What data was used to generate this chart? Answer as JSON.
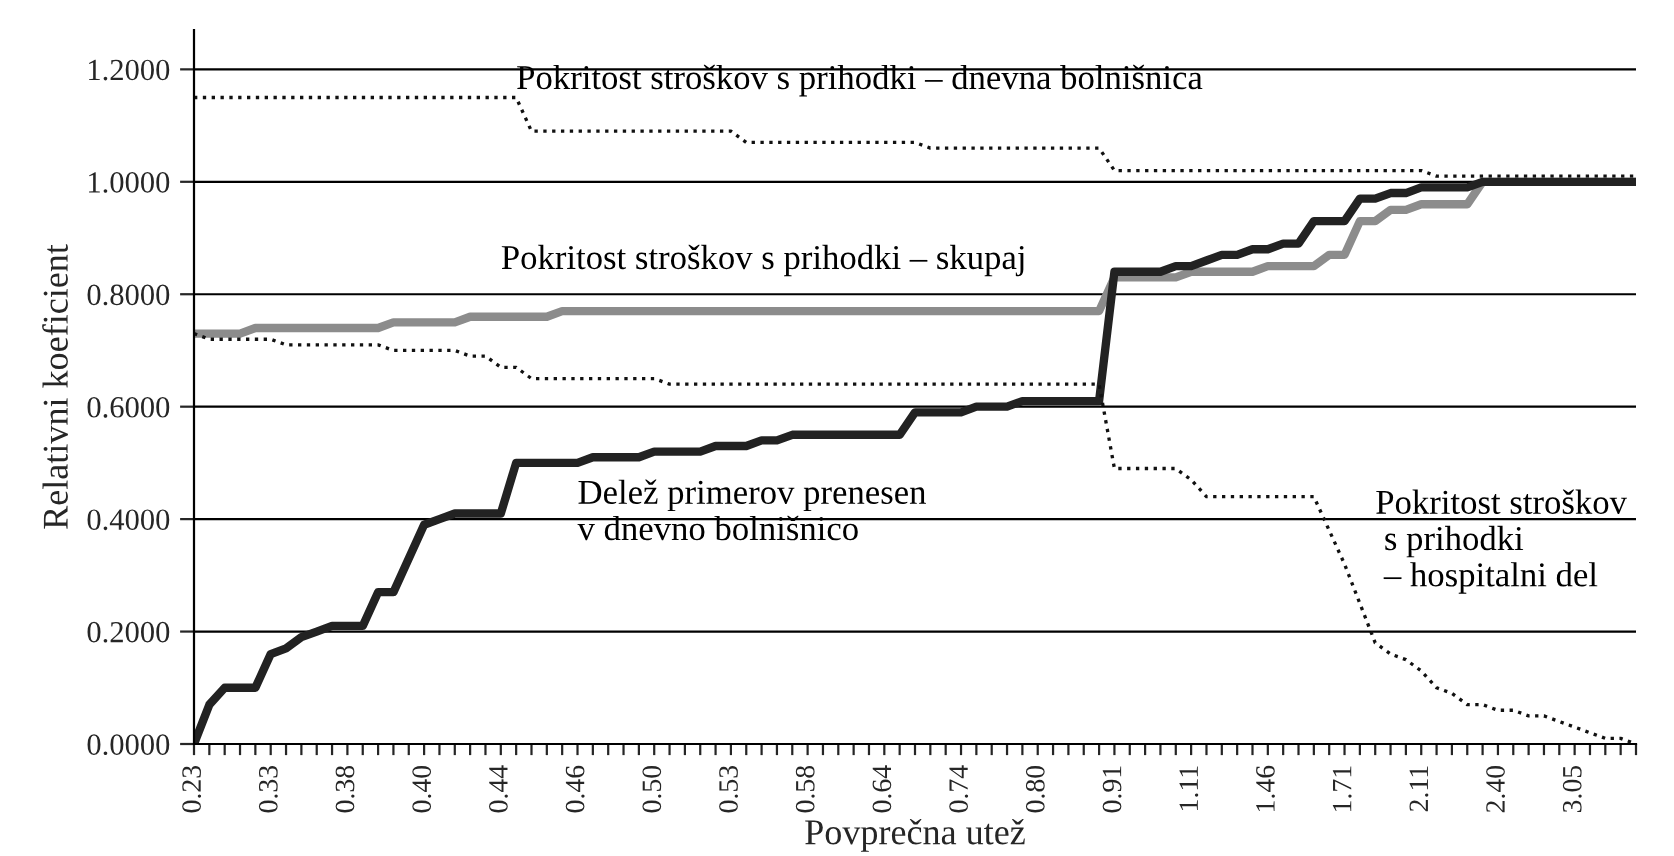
{
  "chart_data": {
    "type": "line",
    "xlabel": "Povprečna utež",
    "ylabel": "Relativni koeficient",
    "categories": [
      "0.23",
      null,
      null,
      null,
      null,
      "0.33",
      null,
      null,
      null,
      null,
      "0.38",
      null,
      null,
      null,
      null,
      "0.40",
      null,
      null,
      null,
      null,
      "0.44",
      null,
      null,
      null,
      null,
      "0.46",
      null,
      null,
      null,
      null,
      "0.50",
      null,
      null,
      null,
      null,
      "0.53",
      null,
      null,
      null,
      null,
      "0.58",
      null,
      null,
      null,
      null,
      "0.64",
      null,
      null,
      null,
      null,
      "0.74",
      null,
      null,
      null,
      null,
      "0.80",
      null,
      null,
      null,
      null,
      "0.91",
      null,
      null,
      null,
      null,
      "1.11",
      null,
      null,
      null,
      null,
      "1.46",
      null,
      null,
      null,
      null,
      "1.71",
      null,
      null,
      null,
      null,
      "2.11",
      null,
      null,
      null,
      null,
      "2.40",
      null,
      null,
      null,
      null,
      "3.05",
      null,
      null,
      null,
      null
    ],
    "series": [
      {
        "name": "Pokritost stroškov s prihodki – dnevna bolnišnica",
        "color": "#111111",
        "line_style": "dotted",
        "values": [
          1.15,
          1.15,
          1.15,
          1.15,
          1.15,
          1.15,
          1.15,
          1.15,
          1.15,
          1.15,
          1.15,
          1.15,
          1.15,
          1.15,
          1.15,
          1.15,
          1.15,
          1.15,
          1.15,
          1.15,
          1.15,
          1.15,
          1.09,
          1.09,
          1.09,
          1.09,
          1.09,
          1.09,
          1.09,
          1.09,
          1.09,
          1.09,
          1.09,
          1.09,
          1.09,
          1.09,
          1.07,
          1.07,
          1.07,
          1.07,
          1.07,
          1.07,
          1.07,
          1.07,
          1.07,
          1.07,
          1.07,
          1.07,
          1.06,
          1.06,
          1.06,
          1.06,
          1.06,
          1.06,
          1.06,
          1.06,
          1.06,
          1.06,
          1.06,
          1.06,
          1.02,
          1.02,
          1.02,
          1.02,
          1.02,
          1.02,
          1.02,
          1.02,
          1.02,
          1.02,
          1.02,
          1.02,
          1.02,
          1.02,
          1.02,
          1.02,
          1.02,
          1.02,
          1.02,
          1.02,
          1.02,
          1.01,
          1.01,
          1.01,
          1.01,
          1.01,
          1.01,
          1.01,
          1.01,
          1.01,
          1.01,
          1.01,
          1.01,
          1.01,
          1.01
        ]
      },
      {
        "name": "Pokritost stroškov s prihodki – skupaj",
        "color": "#8c8c8c",
        "line_style": "solid",
        "values": [
          0.73,
          0.73,
          0.73,
          0.73,
          0.74,
          0.74,
          0.74,
          0.74,
          0.74,
          0.74,
          0.74,
          0.74,
          0.74,
          0.75,
          0.75,
          0.75,
          0.75,
          0.75,
          0.76,
          0.76,
          0.76,
          0.76,
          0.76,
          0.76,
          0.77,
          0.77,
          0.77,
          0.77,
          0.77,
          0.77,
          0.77,
          0.77,
          0.77,
          0.77,
          0.77,
          0.77,
          0.77,
          0.77,
          0.77,
          0.77,
          0.77,
          0.77,
          0.77,
          0.77,
          0.77,
          0.77,
          0.77,
          0.77,
          0.77,
          0.77,
          0.77,
          0.77,
          0.77,
          0.77,
          0.77,
          0.77,
          0.77,
          0.77,
          0.77,
          0.77,
          0.83,
          0.83,
          0.83,
          0.83,
          0.83,
          0.84,
          0.84,
          0.84,
          0.84,
          0.84,
          0.85,
          0.85,
          0.85,
          0.85,
          0.87,
          0.87,
          0.93,
          0.93,
          0.95,
          0.95,
          0.96,
          0.96,
          0.96,
          0.96,
          1.0,
          1.0,
          1.0,
          1.0,
          1.0,
          1.0,
          1.0,
          1.0,
          1.0,
          1.0,
          1.0
        ]
      },
      {
        "name": "Delež primerov prenesen\nv dnevno bolnišnico",
        "color": "#222222",
        "line_style": "solid",
        "values": [
          0,
          0.07,
          0.1,
          0.1,
          0.1,
          0.16,
          0.17,
          0.19,
          0.2,
          0.21,
          0.21,
          0.21,
          0.27,
          0.27,
          0.33,
          0.39,
          0.4,
          0.41,
          0.41,
          0.41,
          0.41,
          0.5,
          0.5,
          0.5,
          0.5,
          0.5,
          0.51,
          0.51,
          0.51,
          0.51,
          0.52,
          0.52,
          0.52,
          0.52,
          0.53,
          0.53,
          0.53,
          0.54,
          0.54,
          0.55,
          0.55,
          0.55,
          0.55,
          0.55,
          0.55,
          0.55,
          0.55,
          0.59,
          0.59,
          0.59,
          0.59,
          0.6,
          0.6,
          0.6,
          0.61,
          0.61,
          0.61,
          0.61,
          0.61,
          0.61,
          0.84,
          0.84,
          0.84,
          0.84,
          0.85,
          0.85,
          0.86,
          0.87,
          0.87,
          0.88,
          0.88,
          0.89,
          0.89,
          0.93,
          0.93,
          0.93,
          0.97,
          0.97,
          0.98,
          0.98,
          0.99,
          0.99,
          0.99,
          0.99,
          1.0,
          1.0,
          1.0,
          1.0,
          1.0,
          1.0,
          1.0,
          1.0,
          1.0,
          1.0,
          1.0
        ]
      },
      {
        "name": "Pokritost stroškov\n s prihodki\n – hospitalni del",
        "color": "#111111",
        "line_style": "dotted",
        "values": [
          0.73,
          0.72,
          0.72,
          0.72,
          0.72,
          0.72,
          0.71,
          0.71,
          0.71,
          0.71,
          0.71,
          0.71,
          0.71,
          0.7,
          0.7,
          0.7,
          0.7,
          0.7,
          0.69,
          0.69,
          0.67,
          0.67,
          0.65,
          0.65,
          0.65,
          0.65,
          0.65,
          0.65,
          0.65,
          0.65,
          0.65,
          0.64,
          0.64,
          0.64,
          0.64,
          0.64,
          0.64,
          0.64,
          0.64,
          0.64,
          0.64,
          0.64,
          0.64,
          0.64,
          0.64,
          0.64,
          0.64,
          0.64,
          0.64,
          0.64,
          0.64,
          0.64,
          0.64,
          0.64,
          0.64,
          0.64,
          0.64,
          0.64,
          0.64,
          0.64,
          0.49,
          0.49,
          0.49,
          0.49,
          0.49,
          0.47,
          0.44,
          0.44,
          0.44,
          0.44,
          0.44,
          0.44,
          0.44,
          0.44,
          0.38,
          0.32,
          0.25,
          0.18,
          0.16,
          0.15,
          0.13,
          0.1,
          0.09,
          0.07,
          0.07,
          0.06,
          0.06,
          0.05,
          0.05,
          0.04,
          0.03,
          0.02,
          0.01,
          0.01,
          0
        ]
      }
    ],
    "ylim": [
      0,
      1.27
    ],
    "yticks": [
      {
        "value": 0,
        "label": "0.0000"
      },
      {
        "value": 0.2,
        "label": "0.2000"
      },
      {
        "value": 0.4,
        "label": "0.4000"
      },
      {
        "value": 0.6,
        "label": "0.6000"
      },
      {
        "value": 0.8,
        "label": "0.8000"
      },
      {
        "value": 1.0,
        "label": "1.0000"
      },
      {
        "value": 1.2,
        "label": "1.2000"
      }
    ],
    "grid": "y",
    "legend": false
  }
}
